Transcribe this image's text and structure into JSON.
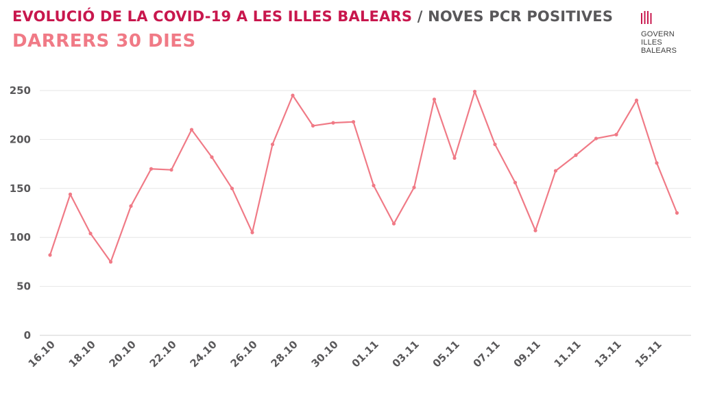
{
  "header": {
    "title_main": "EVOLUCIÓ DE LA COVID-19 A LES ILLES BALEARS",
    "title_sep": "/",
    "title_secondary": "NOVES PCR POSITIVES",
    "subtitle": "DARRERS 30 DIES"
  },
  "logo": {
    "icon": "govern-balear-bars-icon",
    "lines": [
      "GOVERN",
      "ILLES",
      "BALEARS"
    ]
  },
  "colors": {
    "title_main": "#c8174d",
    "title_secondary": "#59585a",
    "subtitle": "#f07a86",
    "series": "#f07a86",
    "grid": "#e6e6e6"
  },
  "chart_data": {
    "type": "line",
    "x": [
      "16.10",
      "17.10",
      "18.10",
      "19.10",
      "20.10",
      "21.10",
      "22.10",
      "23.10",
      "24.10",
      "25.10",
      "26.10",
      "27.10",
      "28.10",
      "29.10",
      "30.10",
      "31.10",
      "01.11",
      "02.11",
      "03.11",
      "04.11",
      "05.11",
      "06.11",
      "07.11",
      "08.11",
      "09.11",
      "10.11",
      "11.11",
      "12.11",
      "13.11",
      "14.11",
      "15.11",
      "16.11"
    ],
    "x_tick_labels": [
      "16.10",
      "18.10",
      "20.10",
      "22.10",
      "24.10",
      "26.10",
      "28.10",
      "30.10",
      "01.11",
      "03.11",
      "05.11",
      "07.11",
      "09.11",
      "11.11",
      "13.11",
      "15.11"
    ],
    "series": [
      {
        "values": [
          82,
          144,
          104,
          75,
          132,
          170,
          169,
          210,
          182,
          150,
          105,
          195,
          245,
          214,
          217,
          218,
          153,
          114,
          151,
          241,
          181,
          249,
          195,
          156,
          107,
          168,
          184,
          201,
          205,
          240,
          176,
          125
        ]
      }
    ],
    "ylim": [
      0,
      250
    ],
    "yticks": [
      0,
      50,
      100,
      150,
      200,
      250
    ],
    "grid": "horizontal",
    "legend": "none",
    "title": "",
    "xlabel": "",
    "ylabel": ""
  }
}
